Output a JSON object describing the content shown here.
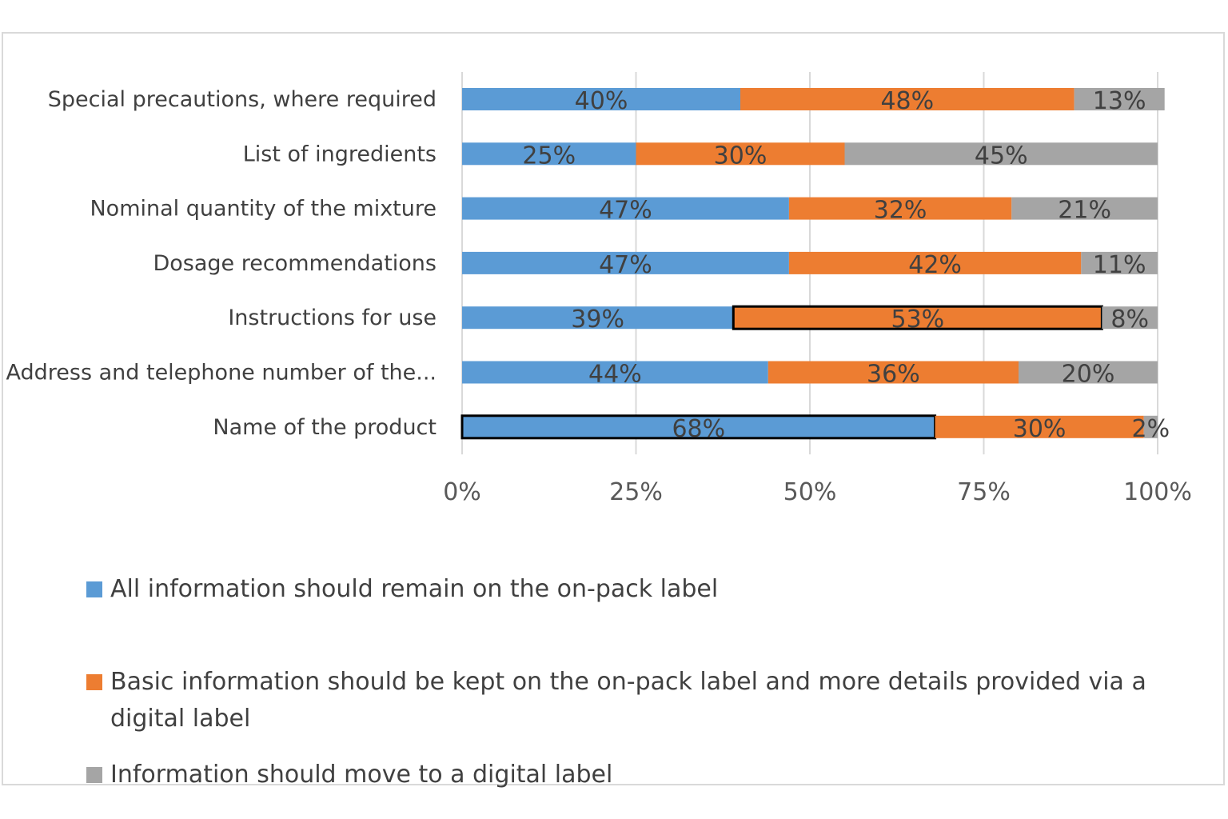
{
  "chart_data": {
    "type": "bar",
    "orientation": "horizontal",
    "stacked": "percent",
    "categories": [
      "Special precautions, where required",
      "List of ingredients",
      "Nominal quantity of the mixture",
      "Dosage recommendations",
      "Instructions for use",
      "Address and telephone number of the...",
      "Name of the product"
    ],
    "series": [
      {
        "name": "All information should remain on the on-pack label",
        "color": "#5b9bd5",
        "values": [
          40,
          25,
          47,
          47,
          39,
          44,
          68
        ],
        "labels": [
          "40%",
          "25%",
          "47%",
          "47%",
          "39%",
          "44%",
          "68%"
        ]
      },
      {
        "name": "Basic information should be kept on the on-pack label and more details provided via a digital label",
        "color": "#ed7d31",
        "values": [
          48,
          30,
          32,
          42,
          53,
          36,
          30
        ],
        "labels": [
          "48%",
          "30%",
          "32%",
          "42%",
          "53%",
          "36%",
          "30%"
        ]
      },
      {
        "name": "Information should move to a digital label",
        "color": "#a5a5a5",
        "values": [
          13,
          45,
          21,
          11,
          8,
          20,
          2
        ],
        "labels": [
          "13%",
          "45%",
          "21%",
          "11%",
          "8%",
          "20%",
          "2%"
        ]
      }
    ],
    "xlim": [
      0,
      100
    ],
    "x_ticks": [
      "0%",
      "25%",
      "50%",
      "75%",
      "100%"
    ],
    "grid": true,
    "legend_position": "bottom",
    "highlighted_segments": [
      {
        "category": "Instructions for use",
        "series": 1
      },
      {
        "category": "Name of the product",
        "series": 0
      }
    ]
  }
}
